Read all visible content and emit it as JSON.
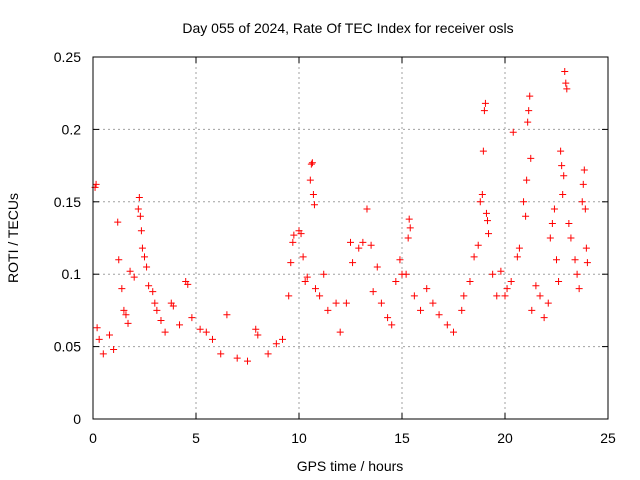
{
  "chart_data": {
    "type": "scatter",
    "title": "Day 055 of 2024, Rate Of TEC Index for receiver osls",
    "xlabel": "GPS time / hours",
    "ylabel": "ROTI / TECUs",
    "xlim": [
      0,
      25
    ],
    "ylim": [
      0,
      0.25
    ],
    "xticks": [
      0,
      5,
      10,
      15,
      20,
      25
    ],
    "yticks": [
      0,
      0.05,
      0.1,
      0.15,
      0.2,
      0.25
    ],
    "xtick_labels": [
      "0",
      "5",
      "10",
      "15",
      "20",
      "25"
    ],
    "ytick_labels": [
      "0",
      "0.05",
      "0.1",
      "0.15",
      "0.2",
      "0.25"
    ],
    "grid": true,
    "marker": "+",
    "color": "#ff0000",
    "series": [
      {
        "name": "ROTI",
        "points": [
          [
            0.1,
            0.16
          ],
          [
            0.15,
            0.162
          ],
          [
            0.2,
            0.063
          ],
          [
            0.3,
            0.055
          ],
          [
            0.5,
            0.045
          ],
          [
            0.8,
            0.058
          ],
          [
            1.0,
            0.048
          ],
          [
            1.2,
            0.136
          ],
          [
            1.25,
            0.11
          ],
          [
            1.4,
            0.09
          ],
          [
            1.5,
            0.075
          ],
          [
            1.6,
            0.072
          ],
          [
            1.7,
            0.066
          ],
          [
            1.8,
            0.102
          ],
          [
            2.0,
            0.098
          ],
          [
            2.2,
            0.145
          ],
          [
            2.25,
            0.153
          ],
          [
            2.3,
            0.14
          ],
          [
            2.35,
            0.13
          ],
          [
            2.4,
            0.118
          ],
          [
            2.5,
            0.112
          ],
          [
            2.6,
            0.105
          ],
          [
            2.7,
            0.092
          ],
          [
            2.9,
            0.088
          ],
          [
            3.0,
            0.08
          ],
          [
            3.1,
            0.075
          ],
          [
            3.3,
            0.068
          ],
          [
            3.5,
            0.06
          ],
          [
            3.8,
            0.08
          ],
          [
            3.9,
            0.078
          ],
          [
            4.2,
            0.065
          ],
          [
            4.5,
            0.095
          ],
          [
            4.6,
            0.093
          ],
          [
            4.8,
            0.07
          ],
          [
            5.2,
            0.062
          ],
          [
            5.5,
            0.06
          ],
          [
            5.8,
            0.055
          ],
          [
            6.2,
            0.045
          ],
          [
            6.5,
            0.072
          ],
          [
            7.0,
            0.042
          ],
          [
            7.5,
            0.04
          ],
          [
            7.9,
            0.062
          ],
          [
            8.0,
            0.058
          ],
          [
            8.5,
            0.045
          ],
          [
            8.9,
            0.052
          ],
          [
            9.2,
            0.055
          ],
          [
            9.5,
            0.085
          ],
          [
            9.6,
            0.108
          ],
          [
            9.7,
            0.122
          ],
          [
            9.75,
            0.127
          ],
          [
            10.0,
            0.13
          ],
          [
            10.1,
            0.128
          ],
          [
            10.2,
            0.112
          ],
          [
            10.3,
            0.095
          ],
          [
            10.4,
            0.098
          ],
          [
            10.55,
            0.165
          ],
          [
            10.6,
            0.176
          ],
          [
            10.65,
            0.177
          ],
          [
            10.7,
            0.155
          ],
          [
            10.75,
            0.148
          ],
          [
            10.8,
            0.09
          ],
          [
            11.0,
            0.085
          ],
          [
            11.2,
            0.1
          ],
          [
            11.4,
            0.075
          ],
          [
            11.8,
            0.08
          ],
          [
            12.0,
            0.06
          ],
          [
            12.3,
            0.08
          ],
          [
            12.5,
            0.122
          ],
          [
            12.6,
            0.108
          ],
          [
            12.9,
            0.118
          ],
          [
            13.1,
            0.122
          ],
          [
            13.3,
            0.145
          ],
          [
            13.5,
            0.12
          ],
          [
            13.6,
            0.088
          ],
          [
            13.8,
            0.105
          ],
          [
            14.0,
            0.08
          ],
          [
            14.3,
            0.07
          ],
          [
            14.5,
            0.065
          ],
          [
            14.7,
            0.095
          ],
          [
            14.9,
            0.11
          ],
          [
            15.0,
            0.1
          ],
          [
            15.2,
            0.1
          ],
          [
            15.3,
            0.125
          ],
          [
            15.35,
            0.138
          ],
          [
            15.4,
            0.132
          ],
          [
            15.6,
            0.085
          ],
          [
            15.9,
            0.075
          ],
          [
            16.2,
            0.09
          ],
          [
            16.5,
            0.08
          ],
          [
            16.8,
            0.072
          ],
          [
            17.2,
            0.065
          ],
          [
            17.5,
            0.06
          ],
          [
            17.9,
            0.075
          ],
          [
            18.0,
            0.085
          ],
          [
            18.3,
            0.095
          ],
          [
            18.5,
            0.112
          ],
          [
            18.7,
            0.12
          ],
          [
            18.8,
            0.15
          ],
          [
            18.9,
            0.155
          ],
          [
            18.95,
            0.185
          ],
          [
            19.0,
            0.213
          ],
          [
            19.05,
            0.218
          ],
          [
            19.1,
            0.142
          ],
          [
            19.15,
            0.137
          ],
          [
            19.2,
            0.128
          ],
          [
            19.4,
            0.1
          ],
          [
            19.6,
            0.085
          ],
          [
            19.8,
            0.102
          ],
          [
            20.0,
            0.085
          ],
          [
            20.1,
            0.09
          ],
          [
            20.3,
            0.095
          ],
          [
            20.4,
            0.198
          ],
          [
            20.6,
            0.112
          ],
          [
            20.7,
            0.118
          ],
          [
            20.9,
            0.15
          ],
          [
            21.0,
            0.14
          ],
          [
            21.05,
            0.165
          ],
          [
            21.1,
            0.205
          ],
          [
            21.15,
            0.213
          ],
          [
            21.2,
            0.223
          ],
          [
            21.25,
            0.18
          ],
          [
            21.3,
            0.075
          ],
          [
            21.5,
            0.092
          ],
          [
            21.7,
            0.085
          ],
          [
            21.9,
            0.07
          ],
          [
            22.1,
            0.08
          ],
          [
            22.2,
            0.125
          ],
          [
            22.3,
            0.135
          ],
          [
            22.4,
            0.145
          ],
          [
            22.5,
            0.11
          ],
          [
            22.6,
            0.095
          ],
          [
            22.7,
            0.185
          ],
          [
            22.75,
            0.175
          ],
          [
            22.8,
            0.155
          ],
          [
            22.85,
            0.168
          ],
          [
            22.9,
            0.24
          ],
          [
            22.95,
            0.232
          ],
          [
            23.0,
            0.228
          ],
          [
            23.1,
            0.135
          ],
          [
            23.2,
            0.125
          ],
          [
            23.4,
            0.11
          ],
          [
            23.5,
            0.1
          ],
          [
            23.6,
            0.09
          ],
          [
            23.75,
            0.15
          ],
          [
            23.8,
            0.162
          ],
          [
            23.85,
            0.172
          ],
          [
            23.9,
            0.145
          ],
          [
            23.95,
            0.118
          ],
          [
            24.0,
            0.108
          ]
        ]
      }
    ]
  }
}
